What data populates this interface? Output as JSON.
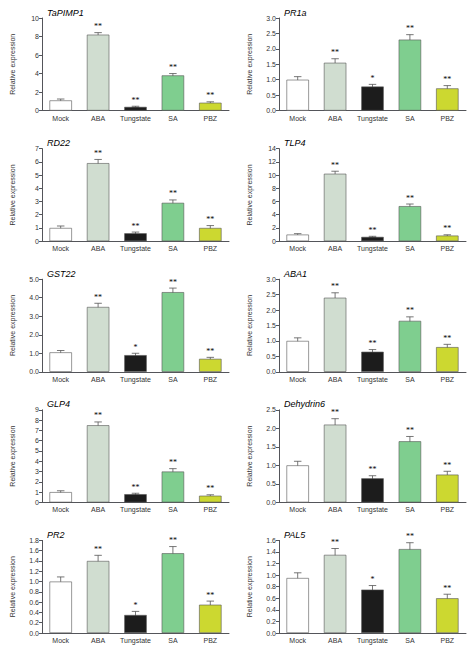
{
  "chart_data": [
    {
      "type": "bar",
      "title": "TaPIMP1",
      "ylabel": "Relative expression",
      "categories": [
        "Mock",
        "ABA",
        "Tungstate",
        "SA",
        "PBZ"
      ],
      "values": [
        1.1,
        8.2,
        0.4,
        3.8,
        0.85
      ],
      "errors": [
        0.15,
        0.22,
        0.07,
        0.2,
        0.1
      ],
      "colors": [
        "#ffffff",
        "#d0ddd0",
        "#1c1c1c",
        "#7fce8f",
        "#ccd830"
      ],
      "edge_color": "#555555",
      "annotations": [
        {
          "category": "ABA",
          "text": "**"
        },
        {
          "category": "Tungstate",
          "text": "**"
        },
        {
          "category": "SA",
          "text": "**"
        },
        {
          "category": "PBZ",
          "text": "**"
        }
      ],
      "ylim": [
        0,
        10
      ],
      "yticks": [
        0,
        2,
        4,
        6,
        8,
        10
      ],
      "grid": false
    },
    {
      "type": "bar",
      "title": "PR1a",
      "ylabel": "Relative expression",
      "categories": [
        "Mock",
        "ABA",
        "Tungstate",
        "SA",
        "PBZ"
      ],
      "values": [
        1.0,
        1.55,
        0.78,
        2.3,
        0.72
      ],
      "errors": [
        0.1,
        0.13,
        0.07,
        0.16,
        0.09
      ],
      "colors": [
        "#ffffff",
        "#d0ddd0",
        "#1c1c1c",
        "#7fce8f",
        "#ccd830"
      ],
      "edge_color": "#555555",
      "annotations": [
        {
          "category": "ABA",
          "text": "**"
        },
        {
          "category": "Tungstate",
          "text": "*"
        },
        {
          "category": "SA",
          "text": "**"
        },
        {
          "category": "PBZ",
          "text": "**"
        }
      ],
      "ylim": [
        0,
        3.0
      ],
      "yticks": [
        {
          "value": 0,
          "label": "0.0"
        },
        0.5,
        {
          "value": 1,
          "label": "1.0"
        },
        1.5,
        {
          "value": 2,
          "label": "2.0"
        },
        2.5,
        {
          "value": 3,
          "label": "3.0"
        }
      ],
      "grid": false
    },
    {
      "type": "bar",
      "title": "RD22",
      "ylabel": "Relative expression",
      "categories": [
        "Mock",
        "ABA",
        "Tungstate",
        "SA",
        "PBZ"
      ],
      "values": [
        1.0,
        5.9,
        0.6,
        2.9,
        1.0
      ],
      "errors": [
        0.15,
        0.28,
        0.09,
        0.22,
        0.18
      ],
      "colors": [
        "#ffffff",
        "#d0ddd0",
        "#1c1c1c",
        "#7fce8f",
        "#ccd830"
      ],
      "edge_color": "#555555",
      "annotations": [
        {
          "category": "ABA",
          "text": "**"
        },
        {
          "category": "Tungstate",
          "text": "**"
        },
        {
          "category": "SA",
          "text": "**"
        },
        {
          "category": "PBZ",
          "text": "**"
        }
      ],
      "ylim": [
        0,
        7
      ],
      "yticks": [
        0,
        1,
        2,
        3,
        4,
        5,
        6,
        7
      ],
      "grid": false
    },
    {
      "type": "bar",
      "title": "TLP4",
      "ylabel": "Relative expression",
      "categories": [
        "Mock",
        "ABA",
        "Tungstate",
        "SA",
        "PBZ"
      ],
      "values": [
        1.0,
        10.2,
        0.65,
        5.3,
        0.85
      ],
      "errors": [
        0.14,
        0.38,
        0.09,
        0.32,
        0.12
      ],
      "colors": [
        "#ffffff",
        "#d0ddd0",
        "#1c1c1c",
        "#7fce8f",
        "#ccd830"
      ],
      "edge_color": "#555555",
      "annotations": [
        {
          "category": "ABA",
          "text": "**"
        },
        {
          "category": "Tungstate",
          "text": "**"
        },
        {
          "category": "SA",
          "text": "**"
        },
        {
          "category": "PBZ",
          "text": "**"
        }
      ],
      "ylim": [
        0,
        14
      ],
      "yticks": [
        0,
        2,
        4,
        6,
        8,
        10,
        12,
        14
      ],
      "grid": false
    },
    {
      "type": "bar",
      "title": "GST22",
      "ylabel": "Relative expression",
      "categories": [
        "Mock",
        "ABA",
        "Tungstate",
        "SA",
        "PBZ"
      ],
      "values": [
        1.05,
        3.5,
        0.9,
        4.3,
        0.7
      ],
      "errors": [
        0.1,
        0.2,
        0.1,
        0.22,
        0.08
      ],
      "colors": [
        "#ffffff",
        "#d0ddd0",
        "#1c1c1c",
        "#7fce8f",
        "#ccd830"
      ],
      "edge_color": "#555555",
      "annotations": [
        {
          "category": "ABA",
          "text": "**"
        },
        {
          "category": "Tungstate",
          "text": "*"
        },
        {
          "category": "SA",
          "text": "**"
        },
        {
          "category": "PBZ",
          "text": "**"
        }
      ],
      "ylim": [
        0,
        5.0
      ],
      "yticks": [
        {
          "value": 0,
          "label": "0.0"
        },
        {
          "value": 1,
          "label": "1.0"
        },
        {
          "value": 2,
          "label": "2.0"
        },
        {
          "value": 3,
          "label": "3.0"
        },
        {
          "value": 4,
          "label": "4.0"
        },
        {
          "value": 5,
          "label": "5.0"
        }
      ],
      "grid": false
    },
    {
      "type": "bar",
      "title": "ABA1",
      "ylabel": "Relative expression",
      "categories": [
        "Mock",
        "ABA",
        "Tungstate",
        "SA",
        "PBZ"
      ],
      "values": [
        1.0,
        2.4,
        0.65,
        1.65,
        0.8
      ],
      "errors": [
        0.1,
        0.16,
        0.07,
        0.13,
        0.09
      ],
      "colors": [
        "#ffffff",
        "#d0ddd0",
        "#1c1c1c",
        "#7fce8f",
        "#ccd830"
      ],
      "edge_color": "#555555",
      "annotations": [
        {
          "category": "ABA",
          "text": "**"
        },
        {
          "category": "Tungstate",
          "text": "**"
        },
        {
          "category": "SA",
          "text": "**"
        },
        {
          "category": "PBZ",
          "text": "**"
        }
      ],
      "ylim": [
        0,
        3.0
      ],
      "yticks": [
        {
          "value": 0,
          "label": "0.0"
        },
        0.5,
        {
          "value": 1,
          "label": "1.0"
        },
        1.5,
        {
          "value": 2,
          "label": "2.0"
        },
        2.5,
        {
          "value": 3,
          "label": "3.0"
        }
      ],
      "grid": false
    },
    {
      "type": "bar",
      "title": "GLP4",
      "ylabel": "Relative expression",
      "categories": [
        "Mock",
        "ABA",
        "Tungstate",
        "SA",
        "PBZ"
      ],
      "values": [
        1.0,
        7.5,
        0.8,
        3.0,
        0.65
      ],
      "errors": [
        0.13,
        0.32,
        0.09,
        0.28,
        0.09
      ],
      "colors": [
        "#ffffff",
        "#d0ddd0",
        "#1c1c1c",
        "#7fce8f",
        "#ccd830"
      ],
      "edge_color": "#555555",
      "annotations": [
        {
          "category": "ABA",
          "text": "**"
        },
        {
          "category": "Tungstate",
          "text": "**"
        },
        {
          "category": "SA",
          "text": "**"
        },
        {
          "category": "PBZ",
          "text": "**"
        }
      ],
      "ylim": [
        0,
        9
      ],
      "yticks": [
        0,
        1,
        2,
        3,
        4,
        5,
        6,
        7,
        8,
        9
      ],
      "grid": false
    },
    {
      "type": "bar",
      "title": "Dehydrin6",
      "ylabel": "Relative expression",
      "categories": [
        "Mock",
        "ABA",
        "Tungstate",
        "SA",
        "PBZ"
      ],
      "values": [
        1.0,
        2.1,
        0.65,
        1.65,
        0.75
      ],
      "errors": [
        0.11,
        0.16,
        0.07,
        0.13,
        0.09
      ],
      "colors": [
        "#ffffff",
        "#d0ddd0",
        "#1c1c1c",
        "#7fce8f",
        "#ccd830"
      ],
      "edge_color": "#555555",
      "annotations": [
        {
          "category": "ABA",
          "text": "**"
        },
        {
          "category": "Tungstate",
          "text": "**"
        },
        {
          "category": "SA",
          "text": "**"
        },
        {
          "category": "PBZ",
          "text": "**"
        }
      ],
      "ylim": [
        0,
        2.5
      ],
      "yticks": [
        {
          "value": 0,
          "label": "0.0"
        },
        0.5,
        {
          "value": 1,
          "label": "1.0"
        },
        1.5,
        {
          "value": 2,
          "label": "2.0"
        },
        2.5
      ],
      "grid": false
    },
    {
      "type": "bar",
      "title": "PR2",
      "ylabel": "Relative expression",
      "categories": [
        "Mock",
        "ABA",
        "Tungstate",
        "SA",
        "PBZ"
      ],
      "values": [
        1.0,
        1.4,
        0.35,
        1.55,
        0.55
      ],
      "errors": [
        0.09,
        0.11,
        0.07,
        0.13,
        0.07
      ],
      "colors": [
        "#ffffff",
        "#d0ddd0",
        "#1c1c1c",
        "#7fce8f",
        "#ccd830"
      ],
      "edge_color": "#555555",
      "annotations": [
        {
          "category": "ABA",
          "text": "**"
        },
        {
          "category": "Tungstate",
          "text": "*"
        },
        {
          "category": "SA",
          "text": "**"
        },
        {
          "category": "PBZ",
          "text": "**"
        }
      ],
      "ylim": [
        0,
        1.8
      ],
      "yticks": [
        {
          "value": 0,
          "label": "0.0"
        },
        0.2,
        0.4,
        0.6,
        0.8,
        {
          "value": 1,
          "label": "1.0"
        },
        1.2,
        1.4,
        1.6,
        1.8
      ],
      "grid": false
    },
    {
      "type": "bar",
      "title": "PAL5",
      "ylabel": "Relative expression",
      "categories": [
        "Mock",
        "ABA",
        "Tungstate",
        "SA",
        "PBZ"
      ],
      "values": [
        0.95,
        1.35,
        0.75,
        1.45,
        0.6
      ],
      "errors": [
        0.09,
        0.11,
        0.07,
        0.11,
        0.07
      ],
      "colors": [
        "#ffffff",
        "#d0ddd0",
        "#1c1c1c",
        "#7fce8f",
        "#ccd830"
      ],
      "edge_color": "#555555",
      "annotations": [
        {
          "category": "ABA",
          "text": "**"
        },
        {
          "category": "Tungstate",
          "text": "*"
        },
        {
          "category": "SA",
          "text": "**"
        },
        {
          "category": "PBZ",
          "text": "**"
        }
      ],
      "ylim": [
        0,
        1.6
      ],
      "yticks": [
        {
          "value": 0,
          "label": "0.0"
        },
        0.2,
        0.4,
        0.6,
        0.8,
        {
          "value": 1,
          "label": "1.0"
        },
        1.2,
        1.4,
        1.6
      ],
      "grid": false
    }
  ]
}
